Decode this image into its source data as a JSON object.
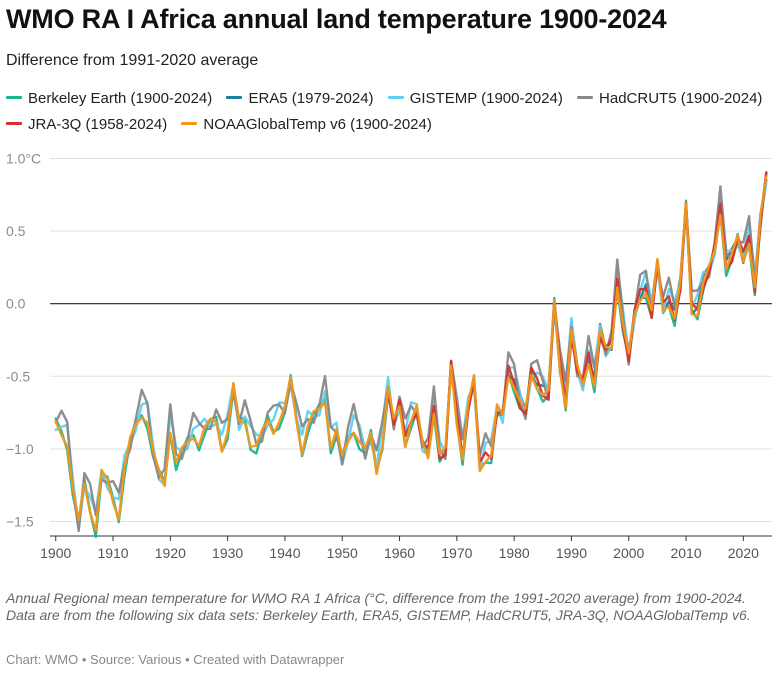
{
  "title": "WMO RA I Africa annual land temperature 1900-2024",
  "subtitle": "Difference from 1991-2020 average",
  "caption": "Annual Regional mean temperature for WMO RA 1 Africa (°C, difference from the 1991-2020 average) from 1900-2024. Data are from the following six data sets: Berkeley Earth, ERA5, GISTEMP, HadCRUT5, JRA-3Q, NOAAGlobalTemp v6.",
  "notes": "Chart: WMO • Source: Various • Created with Datawrapper",
  "chart_data": {
    "type": "line",
    "title": "WMO RA I Africa annual land temperature 1900-2024",
    "subtitle": "Difference from 1991-2020 average",
    "xlabel": "",
    "ylabel": "",
    "xlim": [
      1899,
      2025
    ],
    "ylim": [
      -1.6,
      1.1
    ],
    "x_ticks": [
      "1900",
      "1910",
      "1920",
      "1930",
      "1940",
      "1950",
      "1960",
      "1970",
      "1980",
      "1990",
      "2000",
      "2010",
      "2020"
    ],
    "x_tick_values": [
      1900,
      1910,
      1920,
      1930,
      1940,
      1950,
      1960,
      1970,
      1980,
      1990,
      2000,
      2010,
      2020
    ],
    "y_ticks": [
      "1.0°C",
      "0.5",
      "0.0",
      "-0.5",
      "−1.0",
      "−1.5"
    ],
    "y_tick_values": [
      1.0,
      0.5,
      0.0,
      -0.5,
      -1.0,
      -1.5
    ],
    "zero_line": true,
    "grid": "horizontal",
    "legend_position": "top",
    "series": [
      {
        "name": "Berkeley Earth (1900-2024)",
        "color": "#18b592",
        "start": 1900,
        "offset": 0.0,
        "wiggle": 0.06,
        "phase": 0.0
      },
      {
        "name": "ERA5 (1979-2024)",
        "color": "#1c7fa0",
        "start": 1979,
        "offset": 0.03,
        "wiggle": 0.05,
        "phase": 1.7
      },
      {
        "name": "GISTEMP (1900-2024)",
        "color": "#5fd1f2",
        "start": 1900,
        "offset": 0.05,
        "wiggle": 0.07,
        "phase": 2.9
      },
      {
        "name": "HadCRUT5 (1900-2024)",
        "color": "#888888",
        "start": 1900,
        "offset": 0.07,
        "wiggle": 0.09,
        "phase": 4.1
      },
      {
        "name": "JRA-3Q (1958-2024)",
        "color": "#d6302e",
        "start": 1958,
        "offset": 0.02,
        "wiggle": 0.04,
        "phase": 5.3
      },
      {
        "name": "NOAAGlobalTemp v6 (1900-2024)",
        "color": "#f39719",
        "start": 1900,
        "offset": 0.01,
        "wiggle": 0.05,
        "phase": 0.8
      }
    ],
    "base_series": {
      "x_start": 1900,
      "x_end": 2024,
      "values": [
        -0.85,
        -0.88,
        -0.95,
        -1.3,
        -1.55,
        -1.25,
        -1.4,
        -1.55,
        -1.2,
        -1.25,
        -1.35,
        -1.45,
        -1.15,
        -0.98,
        -0.85,
        -0.75,
        -0.8,
        -1.05,
        -1.2,
        -1.25,
        -0.85,
        -1.1,
        -1.05,
        -0.98,
        -0.9,
        -0.95,
        -0.88,
        -0.85,
        -0.82,
        -0.98,
        -0.88,
        -0.6,
        -0.85,
        -0.8,
        -0.95,
        -1.0,
        -0.93,
        -0.82,
        -0.86,
        -0.8,
        -0.75,
        -0.55,
        -0.8,
        -1.0,
        -0.85,
        -0.8,
        -0.75,
        -0.65,
        -0.97,
        -0.9,
        -1.1,
        -0.95,
        -0.85,
        -0.95,
        -1.05,
        -0.93,
        -1.15,
        -0.95,
        -0.6,
        -0.85,
        -0.72,
        -0.95,
        -0.8,
        -0.75,
        -1.0,
        -1.05,
        -0.72,
        -1.05,
        -1.05,
        -0.45,
        -0.8,
        -1.05,
        -0.72,
        -0.55,
        -1.15,
        -1.05,
        -1.05,
        -0.75,
        -0.8,
        -0.48,
        -0.55,
        -0.7,
        -0.78,
        -0.5,
        -0.55,
        -0.62,
        -0.65,
        -0.02,
        -0.45,
        -0.68,
        -0.2,
        -0.48,
        -0.58,
        -0.38,
        -0.55,
        -0.22,
        -0.35,
        -0.3,
        0.15,
        -0.15,
        -0.4,
        -0.1,
        0.05,
        0.1,
        -0.08,
        0.25,
        -0.05,
        0.02,
        -0.1,
        0.1,
        0.65,
        -0.05,
        -0.05,
        0.12,
        0.2,
        0.35,
        0.65,
        0.25,
        0.3,
        0.42,
        0.3,
        0.45,
        0.1,
        0.55,
        0.85
      ]
    }
  }
}
